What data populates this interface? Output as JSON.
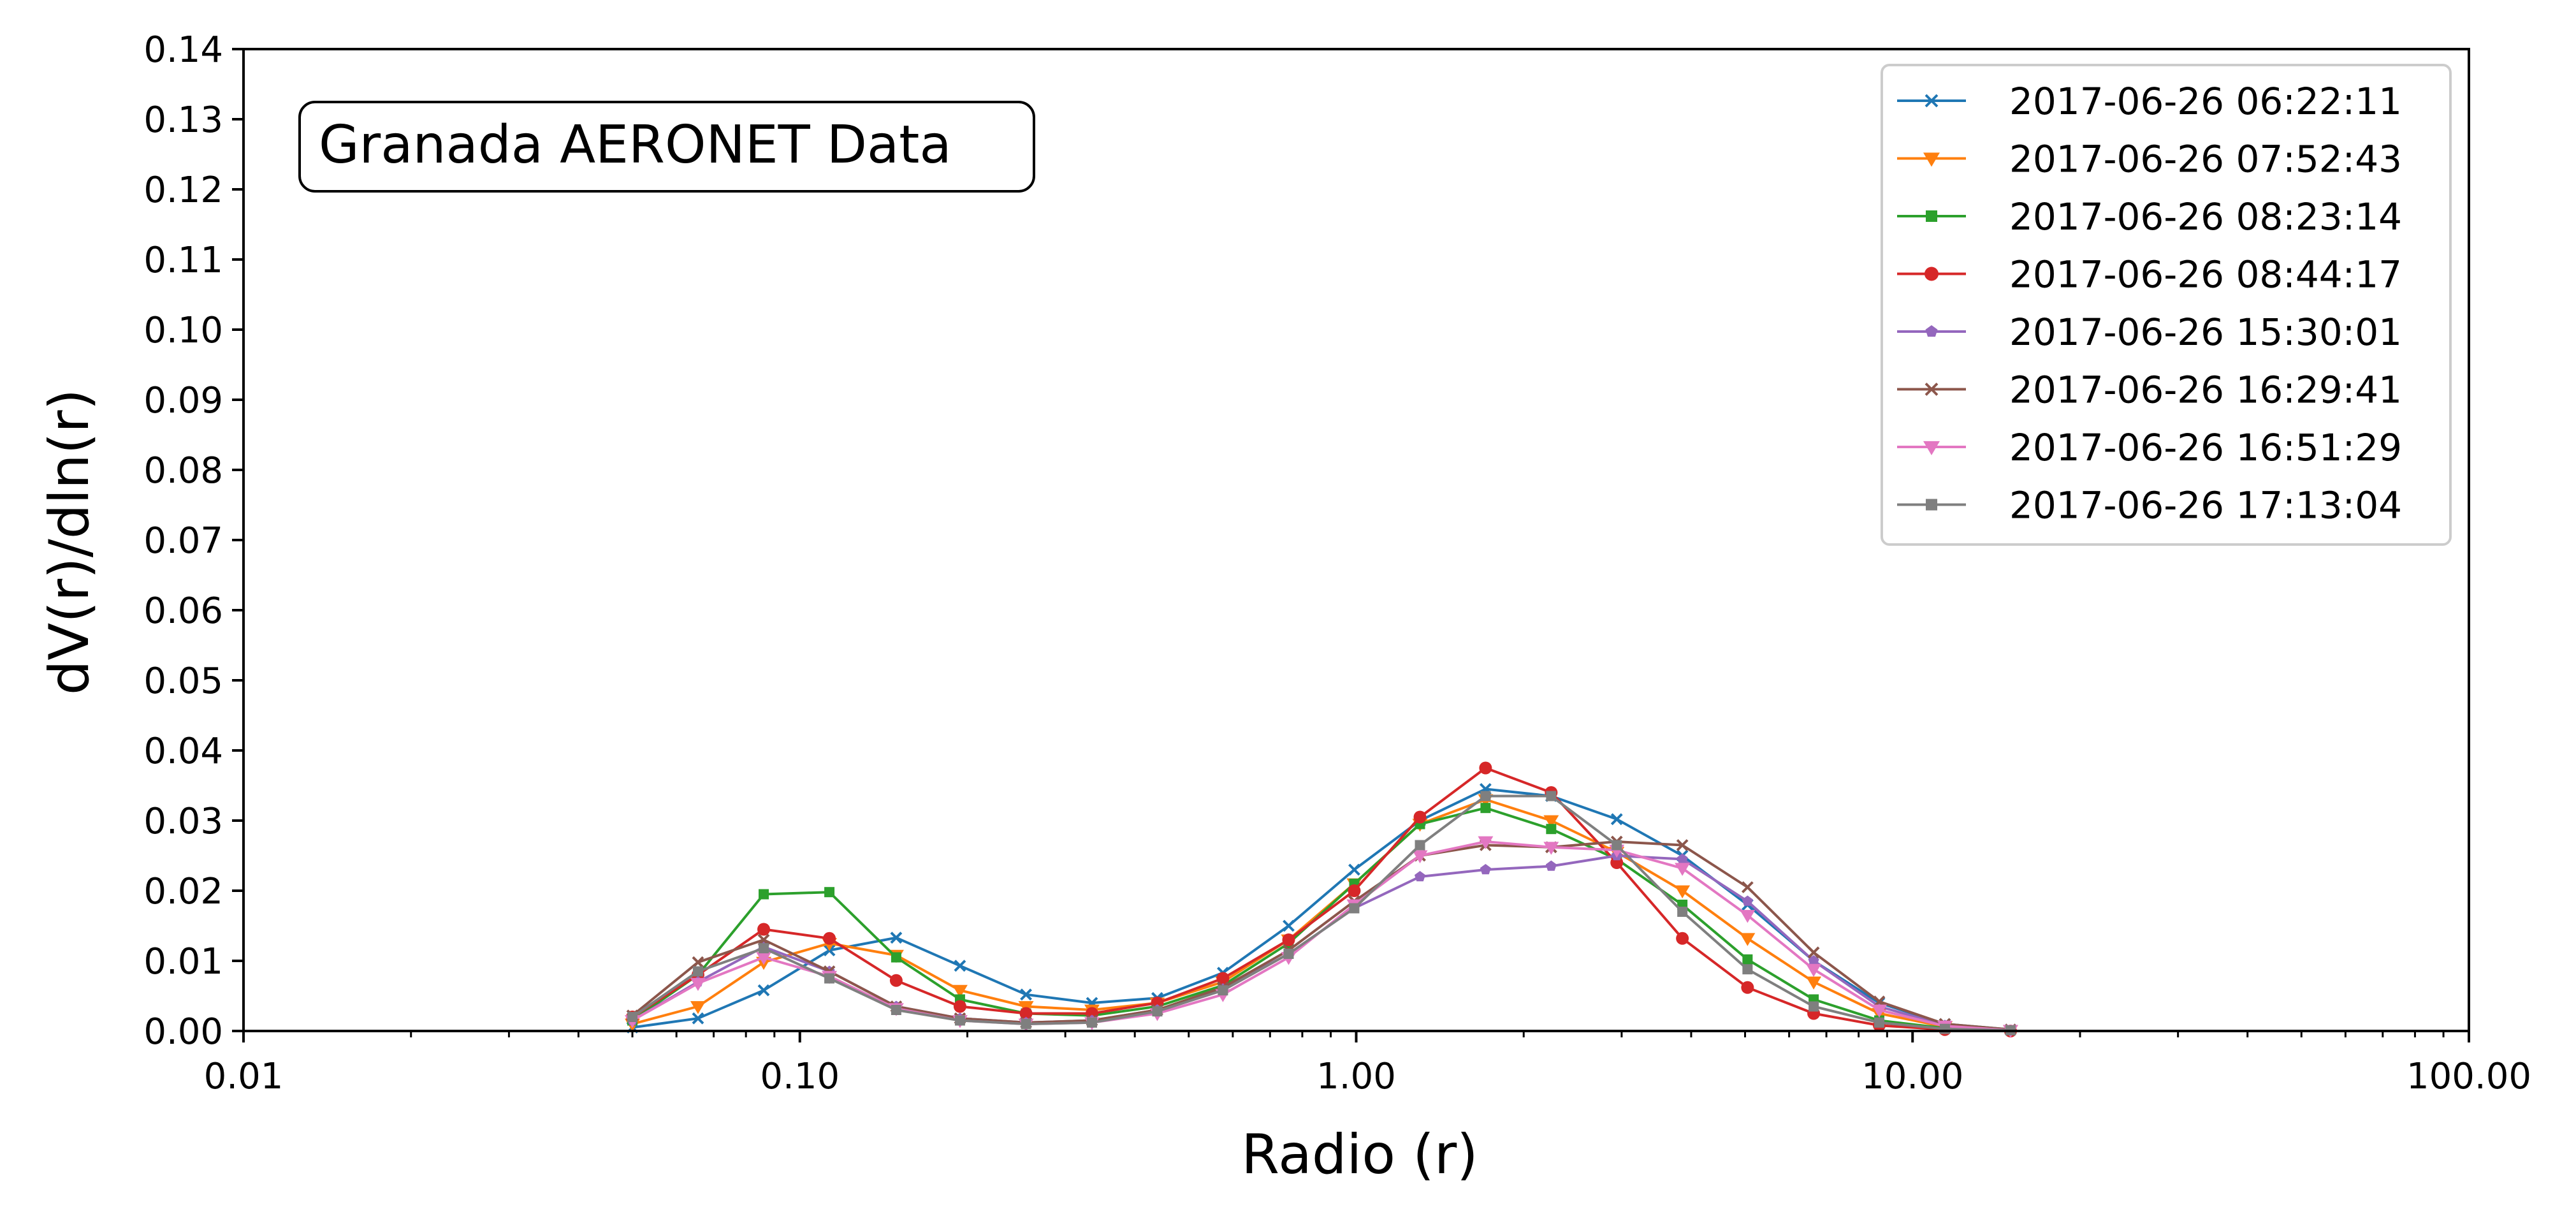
{
  "chart_data": {
    "type": "line",
    "annotation": "Granada AERONET Data",
    "xlabel": "Radio (r)",
    "ylabel": "dV(r)/dln(r)",
    "xscale": "log",
    "xlim": [
      0.01,
      100
    ],
    "ylim": [
      0,
      0.14
    ],
    "x_ticks": [
      0.01,
      0.1,
      1,
      10,
      100
    ],
    "x_tick_labels": [
      "0.01",
      "0.10",
      "1.00",
      "10.00",
      "100.00"
    ],
    "y_ticks": [
      0,
      0.01,
      0.02,
      0.03,
      0.04,
      0.05,
      0.06,
      0.07,
      0.08,
      0.09,
      0.1,
      0.11,
      0.12,
      0.13,
      0.14
    ],
    "y_tick_labels": [
      "0.00",
      "0.01",
      "0.02",
      "0.03",
      "0.04",
      "0.05",
      "0.06",
      "0.07",
      "0.08",
      "0.09",
      "0.10",
      "0.11",
      "0.12",
      "0.13",
      "0.14"
    ],
    "grid": false,
    "legend_position": "top-right",
    "x": [
      0.05,
      0.0656,
      0.0861,
      0.113,
      0.149,
      0.194,
      0.255,
      0.335,
      0.439,
      0.576,
      0.756,
      0.992,
      1.302,
      1.708,
      2.241,
      2.94,
      3.857,
      5.051,
      6.641,
      8.713,
      11.432,
      15.0
    ],
    "series": [
      {
        "name": "2017-06-26 06:22:11",
        "color": "#1f77b4",
        "marker": "x",
        "values": [
          0.0005,
          0.0018,
          0.0058,
          0.0115,
          0.0133,
          0.0093,
          0.0052,
          0.004,
          0.0047,
          0.0083,
          0.015,
          0.023,
          0.03,
          0.0345,
          0.0335,
          0.0302,
          0.025,
          0.018,
          0.01,
          0.004,
          0.001,
          0.0002
        ]
      },
      {
        "name": "2017-06-26 07:52:43",
        "color": "#ff7f0e",
        "marker": "triangle-down",
        "values": [
          0.001,
          0.0035,
          0.0098,
          0.0125,
          0.0108,
          0.0058,
          0.0035,
          0.003,
          0.004,
          0.007,
          0.013,
          0.021,
          0.0295,
          0.033,
          0.03,
          0.0255,
          0.02,
          0.0132,
          0.007,
          0.0025,
          0.0006,
          0.0001
        ]
      },
      {
        "name": "2017-06-26 08:23:14",
        "color": "#2ca02c",
        "marker": "square",
        "values": [
          0.0015,
          0.008,
          0.0195,
          0.0198,
          0.0105,
          0.0045,
          0.0025,
          0.0022,
          0.0035,
          0.0065,
          0.0125,
          0.021,
          0.0295,
          0.0318,
          0.0288,
          0.0245,
          0.018,
          0.0102,
          0.0045,
          0.0015,
          0.0004,
          0.0001
        ]
      },
      {
        "name": "2017-06-26 08:44:17",
        "color": "#d62728",
        "marker": "circle",
        "values": [
          0.002,
          0.008,
          0.0145,
          0.0132,
          0.0072,
          0.0035,
          0.0025,
          0.0025,
          0.004,
          0.0075,
          0.013,
          0.02,
          0.0305,
          0.0375,
          0.034,
          0.024,
          0.0132,
          0.0062,
          0.0025,
          0.0008,
          0.0002,
          0.0
        ]
      },
      {
        "name": "2017-06-26 15:30:01",
        "color": "#9467bd",
        "marker": "pentagon",
        "values": [
          0.0015,
          0.007,
          0.012,
          0.0085,
          0.0035,
          0.0018,
          0.0012,
          0.0015,
          0.003,
          0.006,
          0.011,
          0.0175,
          0.022,
          0.023,
          0.0235,
          0.025,
          0.0245,
          0.0185,
          0.01,
          0.0035,
          0.0008,
          0.0001
        ]
      },
      {
        "name": "2017-06-26 16:29:41",
        "color": "#8c564b",
        "marker": "x",
        "values": [
          0.0022,
          0.0098,
          0.013,
          0.0085,
          0.0035,
          0.0018,
          0.0012,
          0.0015,
          0.003,
          0.0062,
          0.0115,
          0.0185,
          0.025,
          0.0265,
          0.0262,
          0.027,
          0.0265,
          0.0205,
          0.0112,
          0.0042,
          0.001,
          0.0002
        ]
      },
      {
        "name": "2017-06-26 16:51:29",
        "color": "#e377c2",
        "marker": "triangle-down",
        "values": [
          0.0015,
          0.0068,
          0.0105,
          0.0078,
          0.0032,
          0.0015,
          0.001,
          0.0012,
          0.0025,
          0.0052,
          0.0105,
          0.018,
          0.025,
          0.027,
          0.0262,
          0.0258,
          0.0232,
          0.0165,
          0.0088,
          0.003,
          0.0007,
          0.0001
        ]
      },
      {
        "name": "2017-06-26 17:13:04",
        "color": "#7f7f7f",
        "marker": "square",
        "values": [
          0.002,
          0.0085,
          0.0118,
          0.0075,
          0.003,
          0.0015,
          0.001,
          0.0012,
          0.0028,
          0.0058,
          0.011,
          0.0175,
          0.0265,
          0.0335,
          0.0335,
          0.0265,
          0.017,
          0.0088,
          0.0035,
          0.0012,
          0.0003,
          0.0001
        ]
      }
    ]
  }
}
